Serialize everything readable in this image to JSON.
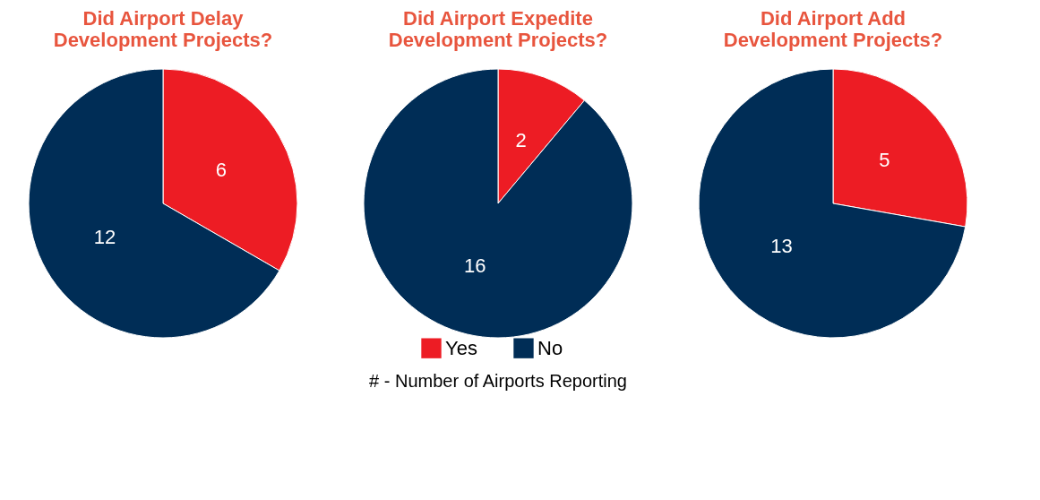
{
  "chart_data": [
    {
      "type": "pie",
      "title": "Did Airport Delay Development Projects?",
      "categories": [
        "Yes",
        "No"
      ],
      "values": [
        6,
        12
      ],
      "colors": [
        "#ed1c24",
        "#002d56"
      ],
      "data_labels": true,
      "legend": "bottom"
    },
    {
      "type": "pie",
      "title": "Did Airport Expedite Development Projects?",
      "categories": [
        null,
        null
      ],
      "values": [
        2,
        16
      ],
      "colors": [
        "#ed1c24",
        "#002d56"
      ],
      "data_labels": true,
      "annotations": [
        "# - Number of Airports Reporting"
      ]
    },
    {
      "type": "pie",
      "title": "Did Airport Add Development Projects?",
      "categories": [
        null,
        null
      ],
      "values": [
        5,
        13
      ],
      "colors": [
        "#ed1c24",
        "#002d56"
      ],
      "data_labels": true
    }
  ]
}
